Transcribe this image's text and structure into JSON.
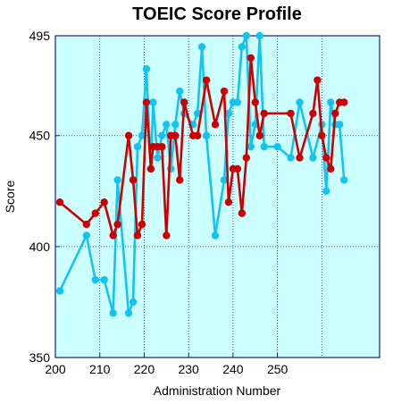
{
  "chart_data": {
    "type": "line",
    "title": "TOEIC Score Profile",
    "xlabel": "Administration Number",
    "ylabel": "Score",
    "xlim": [
      200,
      273
    ],
    "ylim": [
      350,
      495
    ],
    "x_ticks": [
      200,
      210,
      220,
      230,
      240,
      250
    ],
    "y_ticks": [
      350,
      400,
      450,
      495
    ],
    "grid": true,
    "plot_background": "#ccffff",
    "series": [
      {
        "color": "#14c4ef",
        "x": [
          201,
          207,
          209,
          211,
          213,
          214,
          216.5,
          217.5,
          218.5,
          219.5,
          220.5,
          221.5,
          222,
          223,
          224,
          225,
          226,
          227,
          228,
          229,
          231,
          232,
          233,
          234,
          236,
          238,
          239,
          240,
          241,
          242,
          243,
          244,
          245,
          246,
          247,
          250,
          253,
          255,
          258,
          260,
          261,
          262,
          263,
          264,
          265
        ],
        "y": [
          380,
          405,
          385,
          385,
          370,
          430,
          370,
          375,
          445,
          450,
          480,
          435,
          465,
          440,
          450,
          455,
          435,
          455,
          470,
          460,
          455,
          460,
          490,
          450,
          405,
          430,
          460,
          465,
          465,
          490,
          495,
          445,
          455,
          495,
          445,
          445,
          440,
          465,
          440,
          455,
          425,
          465,
          455,
          455,
          430
        ]
      },
      {
        "color": "#cc0000",
        "x": [
          201,
          207,
          209,
          211,
          213,
          214,
          216.5,
          217.5,
          218.5,
          219.5,
          220.5,
          221.5,
          222,
          223,
          224,
          225,
          226,
          227,
          228,
          229,
          231,
          232,
          234,
          236,
          238,
          239,
          240,
          241,
          242,
          243,
          244,
          245,
          246,
          247,
          253,
          255,
          258,
          259,
          260,
          261,
          262,
          263,
          264,
          265
        ],
        "y": [
          420,
          410,
          415,
          420,
          405,
          410,
          450,
          430,
          405,
          410,
          465,
          435,
          445,
          445,
          445,
          405,
          450,
          450,
          430,
          465,
          450,
          450,
          475,
          455,
          470,
          420,
          435,
          435,
          415,
          440,
          485,
          465,
          450,
          460,
          460,
          440,
          460,
          475,
          450,
          440,
          435,
          460,
          465,
          465
        ]
      }
    ]
  }
}
